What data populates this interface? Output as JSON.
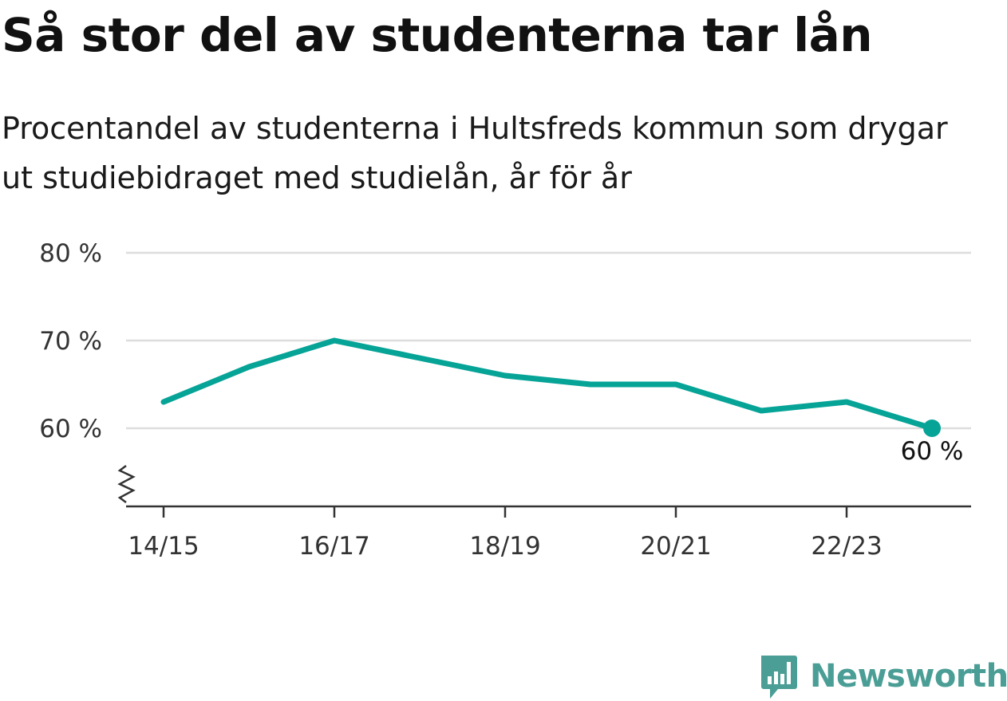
{
  "title": "Så stor del av studenterna tar lån",
  "subtitle": "Procentandel av studenterna i Hultsfreds kommun som drygar ut studiebidraget med studielån, år för år",
  "brand": {
    "name": "Newsworthy",
    "logo_icon": "newsworthy-logo-icon",
    "color": "#4a9e96"
  },
  "colors": {
    "line": "#06a397",
    "grid": "#dddddd",
    "axis": "#333333"
  },
  "chart_data": {
    "type": "line",
    "x": [
      "14/15",
      "15/16",
      "16/17",
      "17/18",
      "18/19",
      "19/20",
      "20/21",
      "21/22",
      "22/23",
      "23/24"
    ],
    "values": [
      63,
      67,
      70,
      68,
      66,
      65,
      65,
      62,
      63,
      60
    ],
    "xticks": [
      "14/15",
      "16/17",
      "18/19",
      "20/21",
      "22/23"
    ],
    "yticks": [
      60,
      70,
      80
    ],
    "ytick_labels": [
      "60 %",
      "70 %",
      "80 %"
    ],
    "ylim": [
      51,
      80
    ],
    "y_axis_break": true,
    "grid": true,
    "last_point_label": "60 %",
    "xlabel": "",
    "ylabel": ""
  }
}
